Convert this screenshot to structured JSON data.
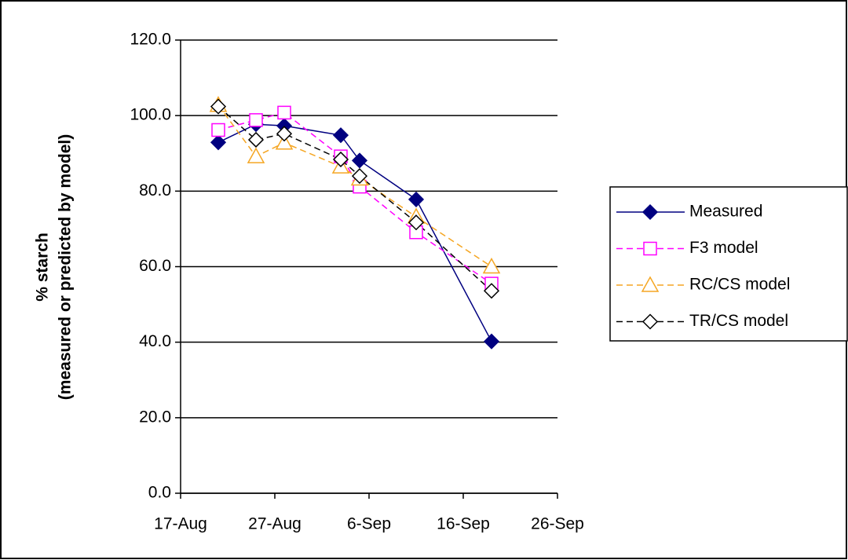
{
  "chart_data": {
    "type": "line",
    "ylabel": [
      "% starch",
      "(measured or predicted by model)"
    ],
    "x": [
      "21-Aug",
      "25-Aug",
      "28-Aug",
      "3-Sep",
      "5-Sep",
      "11-Sep",
      "19-Sep"
    ],
    "xlim": [
      "17-Aug",
      "26-Sep"
    ],
    "xticks": [
      "17-Aug",
      "27-Aug",
      "6-Sep",
      "16-Sep",
      "26-Sep"
    ],
    "ylim": [
      0,
      120
    ],
    "yticks": [
      {
        "value": 0,
        "label": "0.0"
      },
      {
        "value": 20,
        "label": "20.0"
      },
      {
        "value": 40,
        "label": "40.0"
      },
      {
        "value": 60,
        "label": "60.0"
      },
      {
        "value": 80,
        "label": "80.0"
      },
      {
        "value": 100,
        "label": "100.0"
      },
      {
        "value": 120,
        "label": "120.0"
      }
    ],
    "grid": true,
    "series": [
      {
        "name": "Measured",
        "color": "#000080",
        "marker": "diamond",
        "filled": true,
        "dashed": false,
        "values": [
          92.9,
          97.7,
          97.3,
          94.8,
          88.1,
          77.8,
          40.2
        ]
      },
      {
        "name": "F3 model",
        "color": "#ff00ff",
        "marker": "square",
        "filled": false,
        "dashed": true,
        "values": [
          96.2,
          98.8,
          100.8,
          89.2,
          81.2,
          69.1,
          55.5
        ]
      },
      {
        "name": "RC/CS model",
        "color": "#f5a623",
        "marker": "triangle",
        "filled": false,
        "dashed": true,
        "values": [
          102.8,
          89.2,
          92.8,
          86.5,
          83.3,
          73.2,
          60.0
        ]
      },
      {
        "name": "TR/CS model",
        "color": "#000000",
        "marker": "diamond",
        "filled": false,
        "dashed": true,
        "values": [
          102.4,
          93.6,
          95.2,
          88.4,
          84.0,
          71.7,
          53.6
        ]
      }
    ]
  }
}
